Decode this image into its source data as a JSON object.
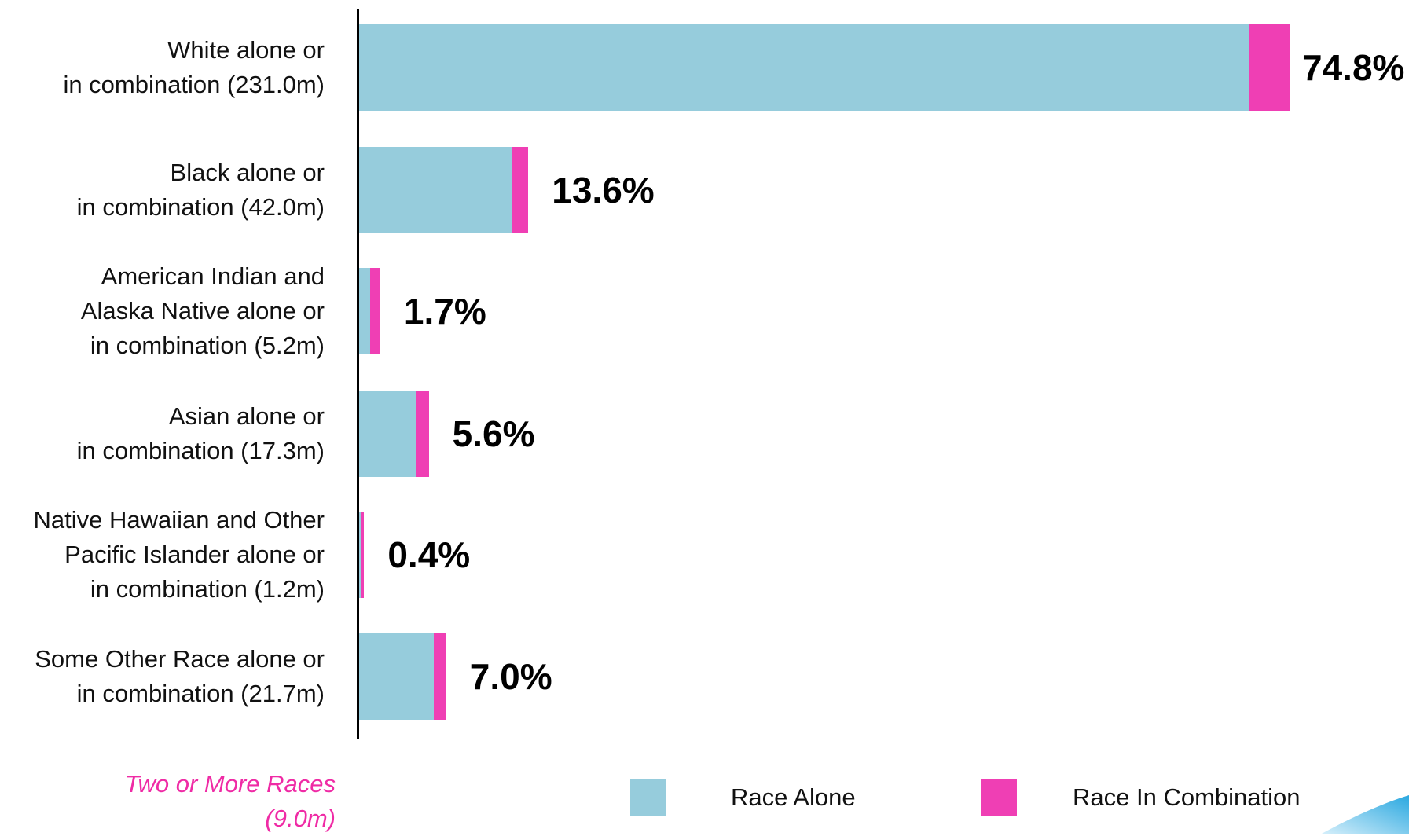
{
  "colors": {
    "race_alone": "#96ccdc",
    "race_in_combination": "#ef3fb4",
    "footnote": "#ef2ba5"
  },
  "chart_data": {
    "type": "bar",
    "orientation": "horizontal",
    "stacked": true,
    "categories": [
      "White alone or\nin combination (231.0m)",
      "Black alone or\nin combination (42.0m)",
      "American Indian and\nAlaska Native alone or\nin combination (5.2m)",
      "Asian alone or\nin combination (17.3m)",
      "Native Hawaiian and Other\nPacific Islander alone or\nin combination (1.2m)",
      "Some Other Race alone or\nin combination (21.7m)"
    ],
    "series": [
      {
        "name": "Race Alone",
        "values": [
          71.6,
          12.3,
          0.9,
          4.6,
          0.2,
          6.0
        ]
      },
      {
        "name": "Race In Combination",
        "values": [
          3.2,
          1.3,
          0.8,
          1.0,
          0.2,
          1.0
        ]
      }
    ],
    "totals": [
      74.8,
      13.6,
      1.7,
      5.6,
      0.4,
      7.0
    ],
    "data_labels": [
      "74.8%",
      "13.6%",
      "1.7%",
      "5.6%",
      "0.4%",
      "7.0%"
    ],
    "xlim": [
      0,
      75
    ],
    "legend": {
      "position": "bottom",
      "items": [
        "Race Alone",
        "Race In Combination"
      ]
    },
    "footnote": "Two or More Races\n(9.0m)",
    "grid": false
  }
}
